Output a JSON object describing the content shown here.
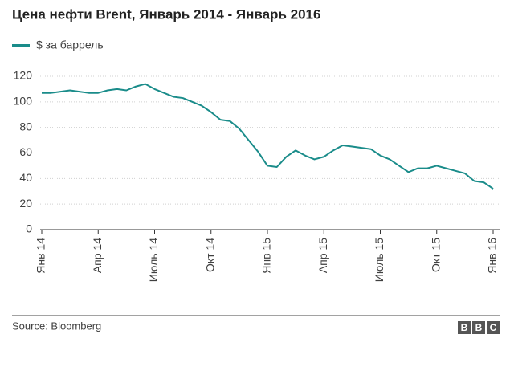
{
  "chart_data": {
    "type": "line",
    "title": "Цена нефти Brent, Январь 2014 - Январь 2016",
    "x": [
      0,
      0.5,
      1,
      1.5,
      2,
      2.5,
      3,
      3.5,
      4,
      4.5,
      5,
      5.5,
      6,
      6.5,
      7,
      7.5,
      8,
      8.5,
      9,
      9.5,
      10,
      10.5,
      11,
      11.5,
      12,
      12.5,
      13,
      13.5,
      14,
      14.5,
      15,
      15.5,
      16,
      16.5,
      17,
      17.5,
      18,
      18.5,
      19,
      19.5,
      20,
      20.5,
      21,
      21.5,
      22,
      22.5,
      23,
      23.5,
      24
    ],
    "series": [
      {
        "name": "$ за баррель",
        "color": "#1a8c8a",
        "values": [
          107,
          107,
          108,
          109,
          108,
          107,
          107,
          109,
          110,
          109,
          112,
          114,
          110,
          107,
          104,
          103,
          100,
          97,
          92,
          86,
          85,
          79,
          70,
          61,
          50,
          49,
          57,
          62,
          58,
          55,
          57,
          62,
          66,
          65,
          64,
          63,
          58,
          55,
          50,
          45,
          48,
          48,
          50,
          48,
          46,
          44,
          38,
          37,
          32
        ]
      }
    ],
    "xlim": [
      0,
      24
    ],
    "xticks": [
      {
        "value": 0,
        "label": "Янв 14"
      },
      {
        "value": 3,
        "label": "Апр 14"
      },
      {
        "value": 6,
        "label": "Июль 14"
      },
      {
        "value": 9,
        "label": "Окт 14"
      },
      {
        "value": 12,
        "label": "Янв 15"
      },
      {
        "value": 15,
        "label": "Апр 15"
      },
      {
        "value": 18,
        "label": "Июль 15"
      },
      {
        "value": 21,
        "label": "Окт 15"
      },
      {
        "value": 24,
        "label": "Янв 16"
      }
    ],
    "ylim": [
      0,
      120
    ],
    "yticks": [
      0,
      20,
      40,
      60,
      80,
      100,
      120
    ],
    "grid": true
  },
  "footer": {
    "source": "Source: Bloomberg",
    "logo": [
      "B",
      "B",
      "C"
    ]
  }
}
